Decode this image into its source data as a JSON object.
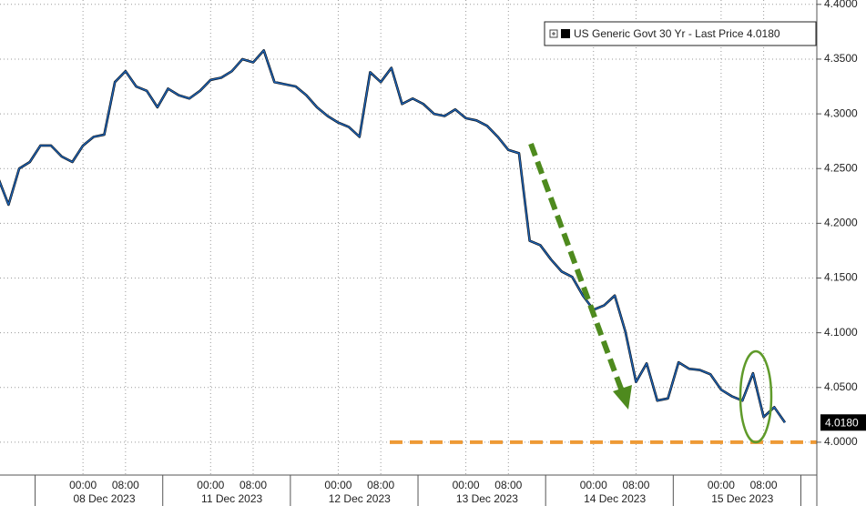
{
  "chart_data": {
    "type": "line",
    "categories": [
      null,
      null,
      null,
      null,
      null,
      null,
      null,
      null,
      "00:00",
      null,
      null,
      null,
      "08:00",
      null,
      null,
      null,
      null,
      null,
      null,
      null,
      "00:00",
      null,
      null,
      null,
      "08:00",
      null,
      null,
      null,
      null,
      null,
      null,
      null,
      "00:00",
      null,
      null,
      null,
      "08:00",
      null,
      null,
      null,
      null,
      null,
      null,
      null,
      "00:00",
      null,
      null,
      null,
      "08:00",
      null,
      null,
      null,
      null,
      null,
      null,
      null,
      "00:00",
      null,
      null,
      null,
      "08:00",
      null,
      null,
      null,
      null,
      null,
      null,
      null,
      "00:00",
      null,
      null,
      null,
      "08:00",
      null,
      null,
      null,
      null,
      null
    ],
    "date_labels": [
      {
        "value": 10,
        "label": "08 Dec 2023"
      },
      {
        "value": 22,
        "label": "11 Dec 2023"
      },
      {
        "value": 34,
        "label": "12 Dec 2023"
      },
      {
        "value": 46,
        "label": "13 Dec 2023"
      },
      {
        "value": 58,
        "label": "14 Dec 2023"
      },
      {
        "value": 70,
        "label": "15 Dec 2023"
      }
    ],
    "series": [
      {
        "name": "US Generic Govt 30 Yr - Last Price 4.0180",
        "color": "#1f63b4",
        "values": [
          4.242,
          4.217,
          4.25,
          4.256,
          4.271,
          4.271,
          4.261,
          4.256,
          4.271,
          4.279,
          4.281,
          4.329,
          4.339,
          4.325,
          4.321,
          4.306,
          4.323,
          4.317,
          4.314,
          4.321,
          4.331,
          4.333,
          4.339,
          4.35,
          4.347,
          4.358,
          4.329,
          4.327,
          4.325,
          4.317,
          4.306,
          4.298,
          4.292,
          4.288,
          4.279,
          4.338,
          4.329,
          4.342,
          4.309,
          4.314,
          4.309,
          4.3,
          4.298,
          4.304,
          4.296,
          4.294,
          4.289,
          4.279,
          4.267,
          4.264,
          4.184,
          4.18,
          4.167,
          4.156,
          4.151,
          4.134,
          4.121,
          4.125,
          4.134,
          4.101,
          4.055,
          4.072,
          4.038,
          4.04,
          4.073,
          4.067,
          4.066,
          4.062,
          4.048,
          4.042,
          4.038,
          4.063,
          4.023,
          4.032,
          4.018,
          null,
          null,
          null
        ]
      }
    ],
    "value_label": "4.0180",
    "ylim": [
      3.97,
      4.404
    ],
    "yticks": [
      {
        "value": 4.0,
        "label": "4.0000"
      },
      {
        "value": 4.05,
        "label": "4.0500"
      },
      {
        "value": 4.1,
        "label": "4.1000"
      },
      {
        "value": 4.15,
        "label": "4.1500"
      },
      {
        "value": 4.2,
        "label": "4.2000"
      },
      {
        "value": 4.25,
        "label": "4.2500"
      },
      {
        "value": 4.3,
        "label": "4.3000"
      },
      {
        "value": 4.35,
        "label": "4.3500"
      },
      {
        "value": 4.4,
        "label": "4.4000"
      }
    ],
    "y_axis_side": "right",
    "grid": true,
    "legend": "top-right",
    "reference_line": {
      "value": 4.0,
      "color": "#ee9a35"
    }
  }
}
